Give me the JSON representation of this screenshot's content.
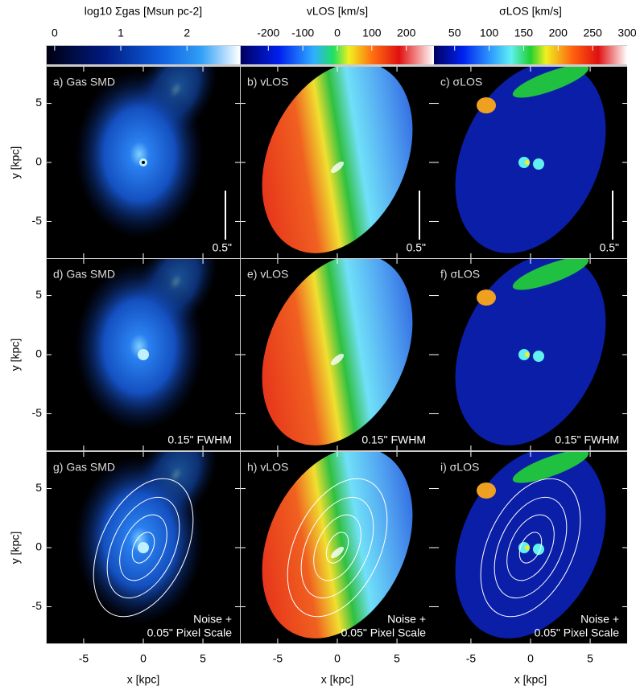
{
  "colorbars": [
    {
      "label": "log10 Σgas [Msun pc-2]",
      "lim": [
        -0.12,
        2.8
      ],
      "ticks": [
        0,
        1,
        2
      ]
    },
    {
      "label": "vLOS [km/s]",
      "lim": [
        -280,
        280
      ],
      "ticks": [
        -200,
        -100,
        0,
        100,
        200
      ]
    },
    {
      "label": "σLOS [km/s]",
      "lim": [
        20,
        300
      ],
      "ticks": [
        50,
        100,
        150,
        200,
        250,
        300
      ]
    }
  ],
  "panels": [
    {
      "label": "a) Gas SMD",
      "note": [
        "0.5\""
      ]
    },
    {
      "label": "b) vLOS",
      "note": [
        "0.5\""
      ]
    },
    {
      "label": "c) σLOS",
      "note": [
        "0.5\""
      ]
    },
    {
      "label": "d) Gas SMD",
      "note": [
        "0.15\" FWHM"
      ]
    },
    {
      "label": "e) vLOS",
      "note": [
        "0.15\" FWHM"
      ]
    },
    {
      "label": "f) σLOS",
      "note": [
        "0.15\" FWHM"
      ]
    },
    {
      "label": "g) Gas SMD",
      "note": [
        "Noise +",
        "0.05\" Pixel Scale"
      ]
    },
    {
      "label": "h) vLOS",
      "note": [
        "Noise +",
        "0.05\" Pixel Scale"
      ]
    },
    {
      "label": "i) σLOS",
      "note": [
        "Noise +",
        "0.05\" Pixel Scale"
      ]
    }
  ],
  "axes": {
    "xlabel": "x [kpc]",
    "ylabel": "y [kpc]",
    "xlim": [
      -8.1,
      8.1
    ],
    "ylim": [
      -8.1,
      8.1
    ],
    "xticks": [
      -5,
      0,
      5
    ],
    "yticks": [
      -5,
      0,
      5
    ]
  }
}
